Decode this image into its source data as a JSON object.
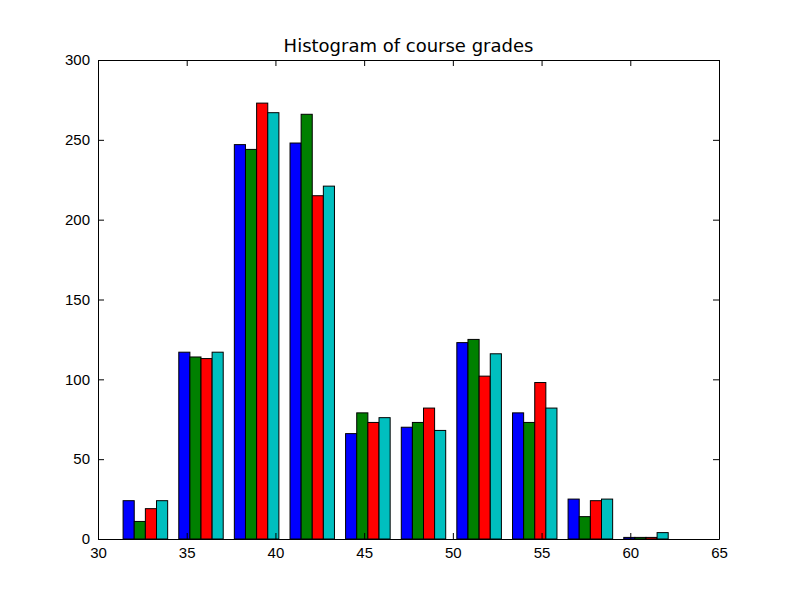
{
  "chart_data": {
    "type": "histogram",
    "title": "Histogram of course grades",
    "bins": [
      31.1,
      34.24,
      37.37,
      40.51,
      43.64,
      46.78,
      49.91,
      53.05,
      56.18,
      59.32,
      62.45
    ],
    "series": [
      {
        "color": "#0000ff",
        "values": [
          24,
          117,
          247,
          248,
          66,
          70,
          123,
          79,
          25,
          1
        ]
      },
      {
        "color": "#008000",
        "values": [
          11,
          114,
          244,
          266,
          79,
          73,
          125,
          73,
          14,
          1
        ]
      },
      {
        "color": "#ff0000",
        "values": [
          19,
          113,
          273,
          215,
          73,
          82,
          102,
          98,
          24,
          1
        ]
      },
      {
        "color": "#00bfbf",
        "values": [
          24,
          117,
          267,
          221,
          76,
          68,
          116,
          82,
          25,
          4
        ]
      }
    ],
    "xlim": [
      30,
      65
    ],
    "xticks": [
      30,
      35,
      40,
      45,
      50,
      55,
      60,
      65
    ],
    "ylim": [
      0,
      300
    ],
    "yticks": [
      0,
      50,
      100,
      150,
      200,
      250,
      300
    ],
    "grid": false
  }
}
